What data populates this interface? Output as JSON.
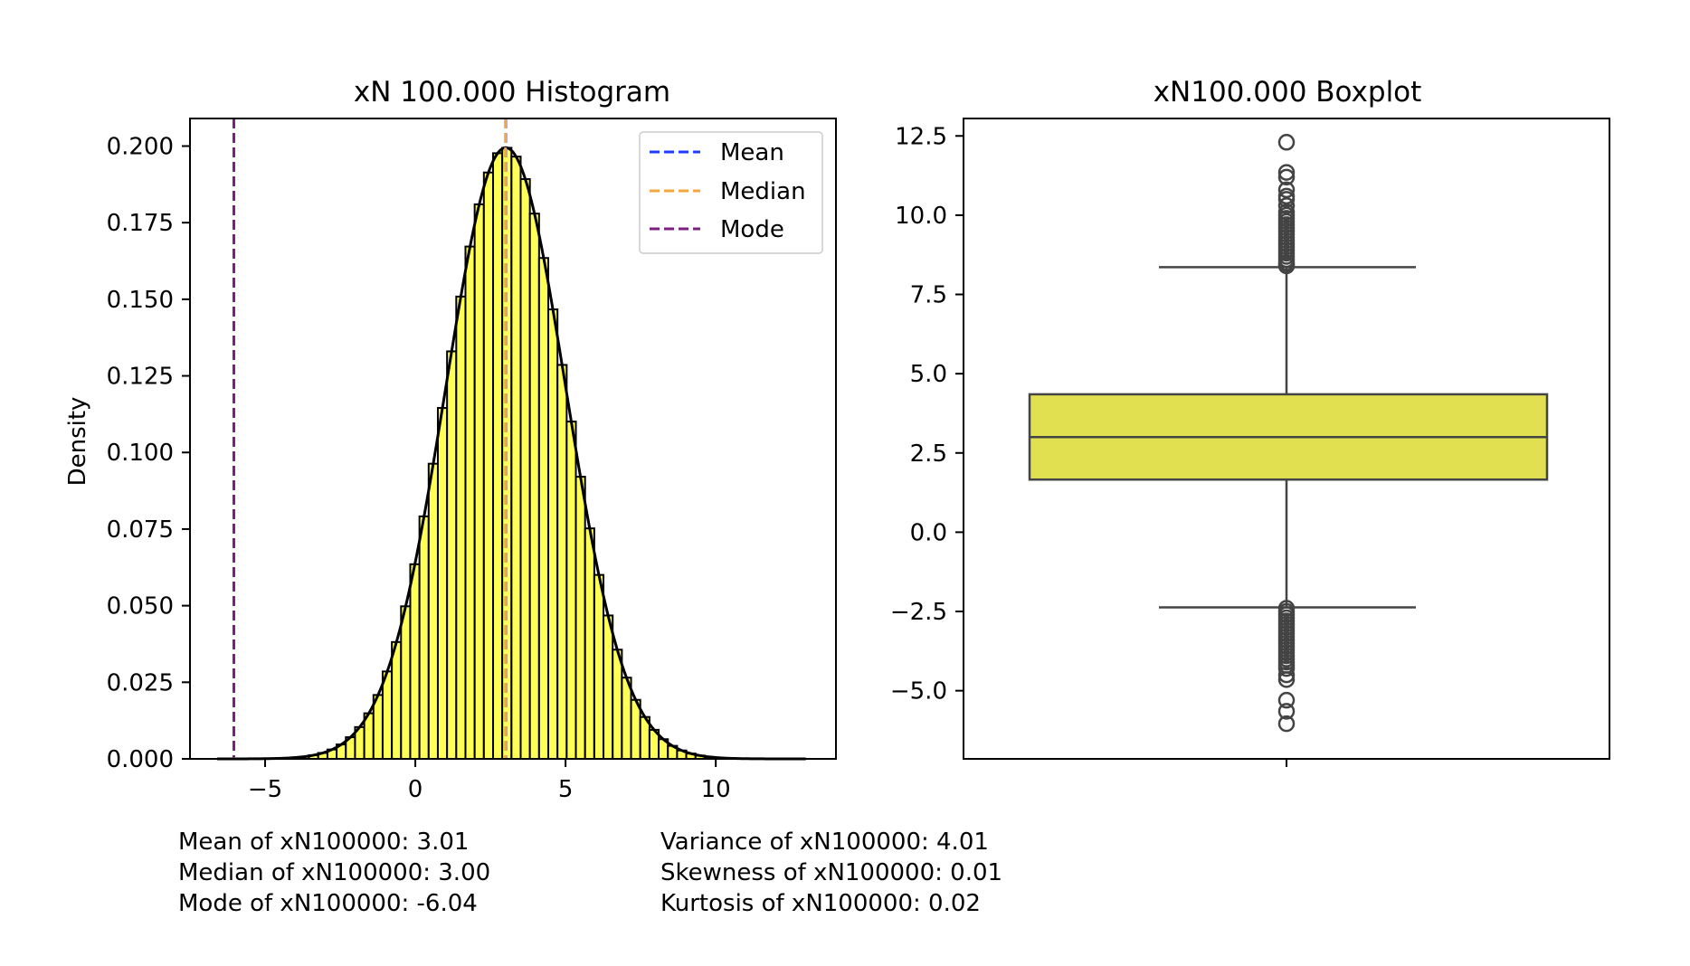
{
  "chart_data": [
    {
      "type": "histogram",
      "title": "xN 100.000 Histogram",
      "ylabel": "Density",
      "xlabel": "",
      "xlim": [
        -7.5,
        14.0
      ],
      "ylim": [
        0,
        0.209
      ],
      "xticks": [
        -5,
        0,
        5,
        10
      ],
      "xtick_labels": [
        "−5",
        "0",
        "5",
        "10"
      ],
      "yticks": [
        0.0,
        0.025,
        0.05,
        0.075,
        0.1,
        0.125,
        0.15,
        0.175,
        0.2
      ],
      "ytick_labels": [
        "0.000",
        "0.025",
        "0.050",
        "0.075",
        "0.100",
        "0.125",
        "0.150",
        "0.175",
        "0.200"
      ],
      "bins": {
        "start": -6.6,
        "end": 13.0,
        "count": 64
      },
      "distribution": {
        "mean": 3.01,
        "std": 2.0
      },
      "bar_color": "#ffff55",
      "vlines": [
        {
          "label": "Mean",
          "x": 3.01,
          "color": "#1f3cff"
        },
        {
          "label": "Median",
          "x": 3.0,
          "color": "#f5a541"
        },
        {
          "label": "Mode",
          "x": -6.04,
          "color": "#7b1f82"
        }
      ],
      "legend": {
        "position": "top-right",
        "entries": [
          "Mean",
          "Median",
          "Mode"
        ]
      }
    },
    {
      "type": "boxplot",
      "title": "xN100.000 Boxplot",
      "ylim": [
        -7.15,
        13.05
      ],
      "yticks": [
        -5,
        -2.5,
        0,
        2.5,
        5,
        7.5,
        10,
        12.5
      ],
      "ytick_labels": [
        "−5.0",
        "−2.5",
        "0.0",
        "2.5",
        "5.0",
        "7.5",
        "10.0",
        "12.5"
      ],
      "box": {
        "q1": 1.66,
        "median": 3.0,
        "q3": 4.35,
        "whisker_low": -2.37,
        "whisker_high": 8.36
      },
      "outliers_high": [
        8.4,
        8.45,
        8.5,
        8.6,
        8.7,
        8.8,
        8.9,
        9.0,
        9.1,
        9.2,
        9.3,
        9.4,
        9.5,
        9.6,
        9.7,
        9.8,
        9.9,
        10.0,
        10.1,
        10.3,
        10.5,
        10.6,
        10.8,
        11.2,
        11.35,
        12.3
      ],
      "outliers_low": [
        -2.4,
        -2.5,
        -2.6,
        -2.7,
        -2.8,
        -2.9,
        -3.0,
        -3.1,
        -3.2,
        -3.3,
        -3.4,
        -3.5,
        -3.6,
        -3.7,
        -3.8,
        -3.9,
        -4.0,
        -4.1,
        -4.2,
        -4.3,
        -4.5,
        -4.65,
        -5.3,
        -5.65,
        -6.04
      ],
      "box_color": "#e1e051",
      "line_color": "#444444"
    }
  ],
  "stats": {
    "mean": "Mean of xN100000: 3.01",
    "median": "Median of xN100000: 3.00",
    "mode": "Mode of xN100000: -6.04",
    "variance": "Variance of xN100000: 4.01",
    "skewness": "Skewness of xN100000: 0.01",
    "kurtosis": "Kurtosis of xN100000: 0.02"
  }
}
